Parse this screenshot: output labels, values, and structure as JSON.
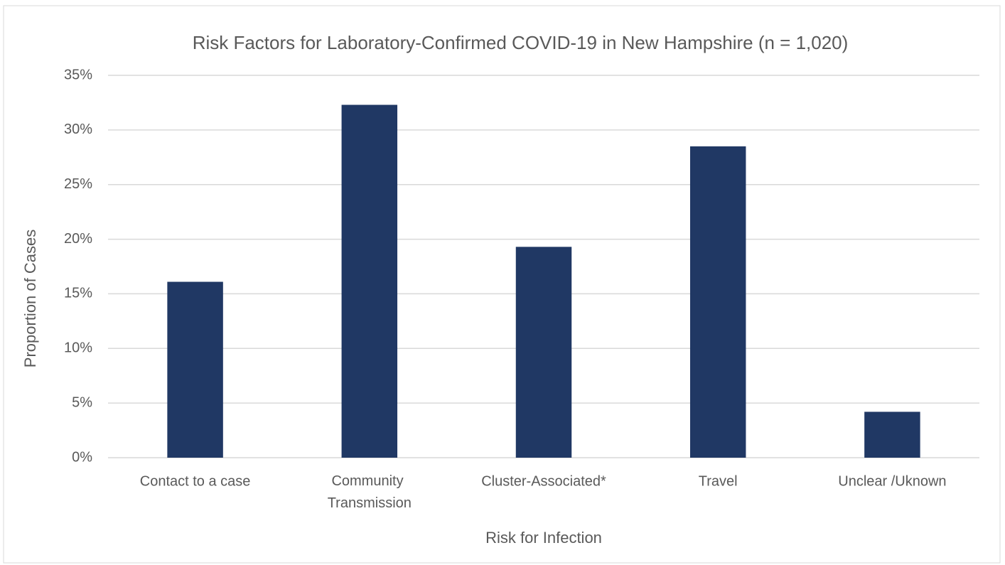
{
  "chart_data": {
    "type": "bar",
    "title": "Risk Factors for Laboratory-Confirmed COVID-19 in New Hampshire (n = 1,020)",
    "x_label": "Risk for Infection",
    "y_label": "Proportion of Cases",
    "categories": [
      "Contact to a case",
      "Community Transmission",
      "Cluster-Associated*",
      "Travel",
      "Unclear /Uknown"
    ],
    "values": [
      16.1,
      32.3,
      19.3,
      28.5,
      4.2
    ],
    "color": "#203864",
    "ylim": [
      0,
      35
    ],
    "yticks": [
      {
        "value": 0,
        "label": "0%"
      },
      {
        "value": 5,
        "label": "5%"
      },
      {
        "value": 10,
        "label": "10%"
      },
      {
        "value": 15,
        "label": "15%"
      },
      {
        "value": 20,
        "label": "20%"
      },
      {
        "value": 25,
        "label": "25%"
      },
      {
        "value": 30,
        "label": "30%"
      },
      {
        "value": 35,
        "label": "35%"
      }
    ],
    "grid": true
  }
}
